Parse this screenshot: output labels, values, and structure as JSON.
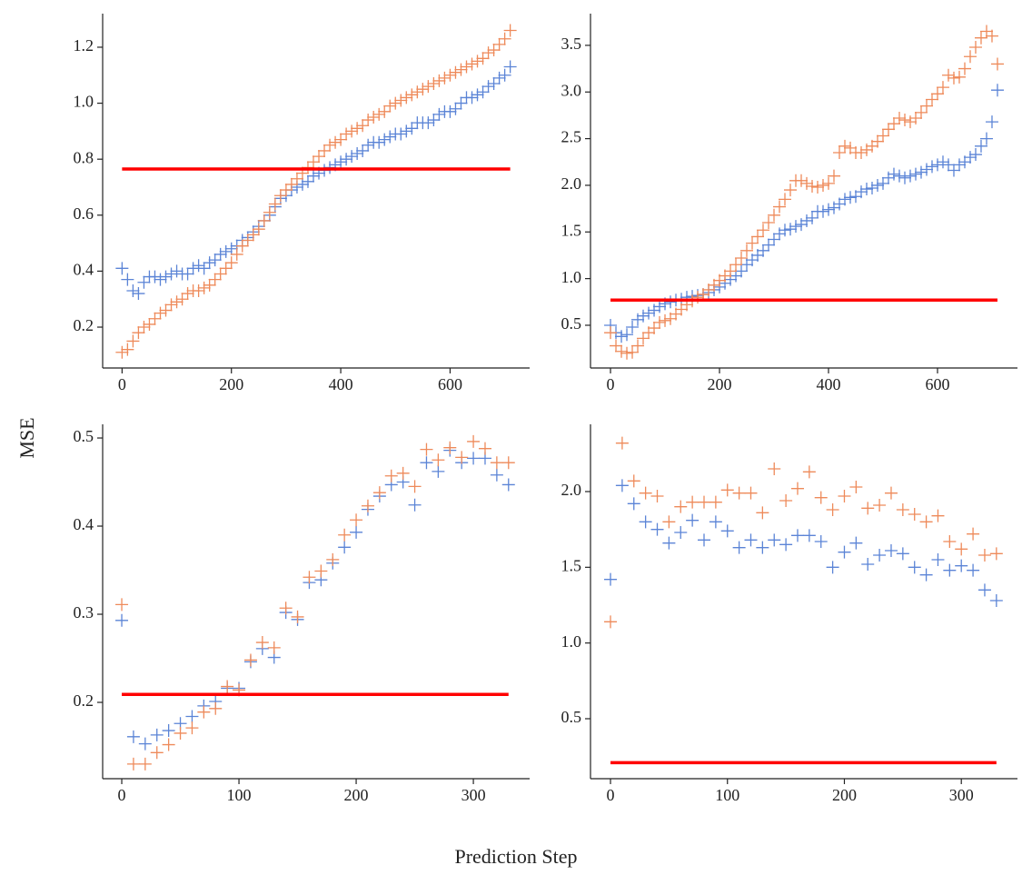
{
  "ylabel": "MSE",
  "xlabel": "Prediction Step",
  "chart_data": [
    {
      "type": "scatter",
      "marker": "+",
      "x": [
        0,
        10,
        20,
        30,
        40,
        50,
        60,
        70,
        80,
        90,
        100,
        110,
        120,
        130,
        140,
        150,
        160,
        170,
        180,
        190,
        200,
        210,
        220,
        230,
        240,
        250,
        260,
        270,
        280,
        290,
        300,
        310,
        320,
        330,
        340,
        350,
        360,
        370,
        380,
        390,
        400,
        410,
        420,
        430,
        440,
        450,
        460,
        470,
        480,
        490,
        500,
        510,
        520,
        530,
        540,
        550,
        560,
        570,
        580,
        590,
        600,
        610,
        620,
        630,
        640,
        650,
        660,
        670,
        680,
        690,
        700,
        710
      ],
      "series": [
        {
          "color": "#5b84d6",
          "values": [
            0.41,
            0.37,
            0.33,
            0.32,
            0.36,
            0.38,
            0.38,
            0.37,
            0.38,
            0.39,
            0.4,
            0.39,
            0.39,
            0.41,
            0.42,
            0.41,
            0.43,
            0.44,
            0.46,
            0.47,
            0.48,
            0.49,
            0.51,
            0.52,
            0.54,
            0.56,
            0.58,
            0.6,
            0.63,
            0.66,
            0.67,
            0.69,
            0.7,
            0.71,
            0.72,
            0.74,
            0.75,
            0.76,
            0.77,
            0.78,
            0.79,
            0.8,
            0.81,
            0.82,
            0.83,
            0.85,
            0.86,
            0.86,
            0.87,
            0.88,
            0.89,
            0.89,
            0.9,
            0.91,
            0.93,
            0.93,
            0.93,
            0.94,
            0.96,
            0.97,
            0.97,
            0.98,
            1.0,
            1.02,
            1.02,
            1.03,
            1.04,
            1.06,
            1.07,
            1.09,
            1.1,
            1.13
          ]
        },
        {
          "color": "#ee8a5a",
          "values": [
            0.11,
            0.12,
            0.15,
            0.18,
            0.2,
            0.21,
            0.23,
            0.25,
            0.26,
            0.28,
            0.29,
            0.3,
            0.32,
            0.33,
            0.33,
            0.34,
            0.35,
            0.37,
            0.39,
            0.41,
            0.43,
            0.46,
            0.49,
            0.51,
            0.53,
            0.55,
            0.58,
            0.61,
            0.64,
            0.67,
            0.69,
            0.71,
            0.73,
            0.75,
            0.77,
            0.79,
            0.81,
            0.83,
            0.85,
            0.86,
            0.87,
            0.89,
            0.9,
            0.91,
            0.92,
            0.94,
            0.95,
            0.96,
            0.97,
            0.99,
            1.0,
            1.01,
            1.02,
            1.03,
            1.04,
            1.05,
            1.06,
            1.07,
            1.08,
            1.09,
            1.1,
            1.11,
            1.12,
            1.13,
            1.14,
            1.15,
            1.16,
            1.18,
            1.19,
            1.21,
            1.23,
            1.26
          ]
        }
      ],
      "hline": {
        "value": 0.765,
        "color": "#ff0000"
      },
      "xlim": [
        -35.5,
        745.5
      ],
      "xticks": [
        0,
        200,
        400,
        600
      ],
      "ylim": [
        0.054,
        1.32
      ],
      "yticks": [
        0.2,
        0.4,
        0.6,
        0.8,
        {
          "value": 1,
          "label": "1.0"
        },
        1.2
      ]
    },
    {
      "type": "scatter",
      "marker": "+",
      "x": [
        0,
        10,
        20,
        30,
        40,
        50,
        60,
        70,
        80,
        90,
        100,
        110,
        120,
        130,
        140,
        150,
        160,
        170,
        180,
        190,
        200,
        210,
        220,
        230,
        240,
        250,
        260,
        270,
        280,
        290,
        300,
        310,
        320,
        330,
        340,
        350,
        360,
        370,
        380,
        390,
        400,
        410,
        420,
        430,
        440,
        450,
        460,
        470,
        480,
        490,
        500,
        510,
        520,
        530,
        540,
        550,
        560,
        570,
        580,
        590,
        600,
        610,
        620,
        630,
        640,
        650,
        660,
        670,
        680,
        690,
        700,
        710
      ],
      "series": [
        {
          "color": "#5b84d6",
          "values": [
            0.5,
            0.42,
            0.38,
            0.4,
            0.48,
            0.56,
            0.6,
            0.63,
            0.66,
            0.7,
            0.73,
            0.75,
            0.77,
            0.78,
            0.8,
            0.81,
            0.82,
            0.83,
            0.85,
            0.88,
            0.91,
            0.95,
            0.99,
            1.03,
            1.08,
            1.15,
            1.2,
            1.25,
            1.3,
            1.36,
            1.42,
            1.48,
            1.52,
            1.53,
            1.56,
            1.58,
            1.62,
            1.65,
            1.72,
            1.72,
            1.74,
            1.76,
            1.8,
            1.85,
            1.87,
            1.88,
            1.93,
            1.96,
            1.97,
            2.0,
            2.02,
            2.08,
            2.12,
            2.1,
            2.08,
            2.1,
            2.12,
            2.14,
            2.17,
            2.2,
            2.22,
            2.25,
            2.22,
            2.16,
            2.22,
            2.25,
            2.3,
            2.33,
            2.42,
            2.5,
            2.68,
            3.02
          ]
        },
        {
          "color": "#ee8a5a",
          "values": [
            0.42,
            0.28,
            0.22,
            0.2,
            0.21,
            0.28,
            0.36,
            0.42,
            0.47,
            0.53,
            0.55,
            0.57,
            0.62,
            0.67,
            0.72,
            0.76,
            0.8,
            0.83,
            0.88,
            0.93,
            0.98,
            1.03,
            1.08,
            1.15,
            1.22,
            1.3,
            1.38,
            1.45,
            1.52,
            1.6,
            1.68,
            1.77,
            1.85,
            1.95,
            2.05,
            2.05,
            2.02,
            1.99,
            1.98,
            2.0,
            2.02,
            2.1,
            2.35,
            2.42,
            2.4,
            2.35,
            2.35,
            2.38,
            2.42,
            2.47,
            2.53,
            2.6,
            2.66,
            2.72,
            2.7,
            2.68,
            2.72,
            2.78,
            2.85,
            2.92,
            2.98,
            3.05,
            3.18,
            3.15,
            3.16,
            3.25,
            3.38,
            3.48,
            3.58,
            3.65,
            3.6,
            3.3
          ]
        }
      ],
      "hline": {
        "value": 0.77,
        "color": "#ff0000"
      },
      "xlim": [
        -36.7,
        746.7
      ],
      "xticks": [
        0,
        200,
        400,
        600
      ],
      "ylim": [
        0.042,
        3.84
      ],
      "yticks": [
        0.5,
        {
          "value": 1,
          "label": "1.0"
        },
        1.5,
        {
          "value": 2,
          "label": "2.0"
        },
        2.5,
        {
          "value": 3,
          "label": "3.0"
        },
        3.5
      ]
    },
    {
      "type": "scatter",
      "marker": "+",
      "x": [
        0,
        10,
        20,
        30,
        40,
        50,
        60,
        70,
        80,
        90,
        100,
        110,
        120,
        130,
        140,
        150,
        160,
        170,
        180,
        190,
        200,
        210,
        220,
        230,
        240,
        250,
        260,
        270,
        280,
        290,
        300,
        310,
        320,
        330
      ],
      "series": [
        {
          "color": "#5b84d6",
          "values": [
            0.293,
            0.161,
            0.153,
            0.163,
            0.168,
            0.176,
            0.184,
            0.196,
            0.201,
            0.216,
            0.216,
            0.246,
            0.261,
            0.251,
            0.302,
            0.294,
            0.336,
            0.339,
            0.358,
            0.376,
            0.393,
            0.419,
            0.434,
            0.447,
            0.45,
            0.424,
            0.472,
            0.462,
            0.486,
            0.472,
            0.477,
            0.477,
            0.458,
            0.447
          ]
        },
        {
          "color": "#ee8a5a",
          "values": [
            0.311,
            0.13,
            0.13,
            0.143,
            0.152,
            0.165,
            0.171,
            0.189,
            0.193,
            0.218,
            0.214,
            0.248,
            0.268,
            0.262,
            0.307,
            0.297,
            0.342,
            0.349,
            0.362,
            0.39,
            0.407,
            0.423,
            0.438,
            0.457,
            0.46,
            0.445,
            0.487,
            0.475,
            0.489,
            0.478,
            0.496,
            0.488,
            0.472,
            0.472
          ]
        }
      ],
      "hline": {
        "value": 0.209,
        "color": "#ff0000"
      },
      "xlim": [
        -16.3,
        348
      ],
      "xticks": [
        0,
        100,
        200,
        300
      ],
      "ylim": [
        0.1134,
        0.5155
      ],
      "yticks": [
        0.2,
        0.3,
        0.4,
        0.5
      ]
    },
    {
      "type": "scatter",
      "marker": "+",
      "x": [
        0,
        10,
        20,
        30,
        40,
        50,
        60,
        70,
        80,
        90,
        100,
        110,
        120,
        130,
        140,
        150,
        160,
        170,
        180,
        190,
        200,
        210,
        220,
        230,
        240,
        250,
        260,
        270,
        280,
        290,
        300,
        310,
        320,
        330
      ],
      "series": [
        {
          "color": "#5b84d6",
          "values": [
            1.42,
            2.04,
            1.92,
            1.8,
            1.75,
            1.66,
            1.73,
            1.81,
            1.68,
            1.8,
            1.74,
            1.63,
            1.68,
            1.63,
            1.68,
            1.65,
            1.71,
            1.71,
            1.67,
            1.5,
            1.6,
            1.66,
            1.52,
            1.58,
            1.61,
            1.59,
            1.5,
            1.45,
            1.55,
            1.48,
            1.51,
            1.48,
            1.35,
            1.28
          ]
        },
        {
          "color": "#ee8a5a",
          "values": [
            1.14,
            2.32,
            2.07,
            1.99,
            1.97,
            1.8,
            1.9,
            1.93,
            1.93,
            1.93,
            2.01,
            1.99,
            1.99,
            1.86,
            2.15,
            1.94,
            2.02,
            2.13,
            1.96,
            1.88,
            1.97,
            2.03,
            1.89,
            1.91,
            1.99,
            1.88,
            1.85,
            1.8,
            1.84,
            1.67,
            1.62,
            1.72,
            1.58,
            1.59
          ]
        }
      ],
      "hline": {
        "value": 0.21,
        "color": "#ff0000"
      },
      "xlim": [
        -17.1,
        348
      ],
      "xticks": [
        0,
        100,
        200,
        300
      ],
      "ylim": [
        0.104,
        2.444
      ],
      "yticks": [
        0.5,
        {
          "value": 1,
          "label": "1.0"
        },
        1.5,
        {
          "value": 2,
          "label": "2.0"
        }
      ]
    }
  ]
}
